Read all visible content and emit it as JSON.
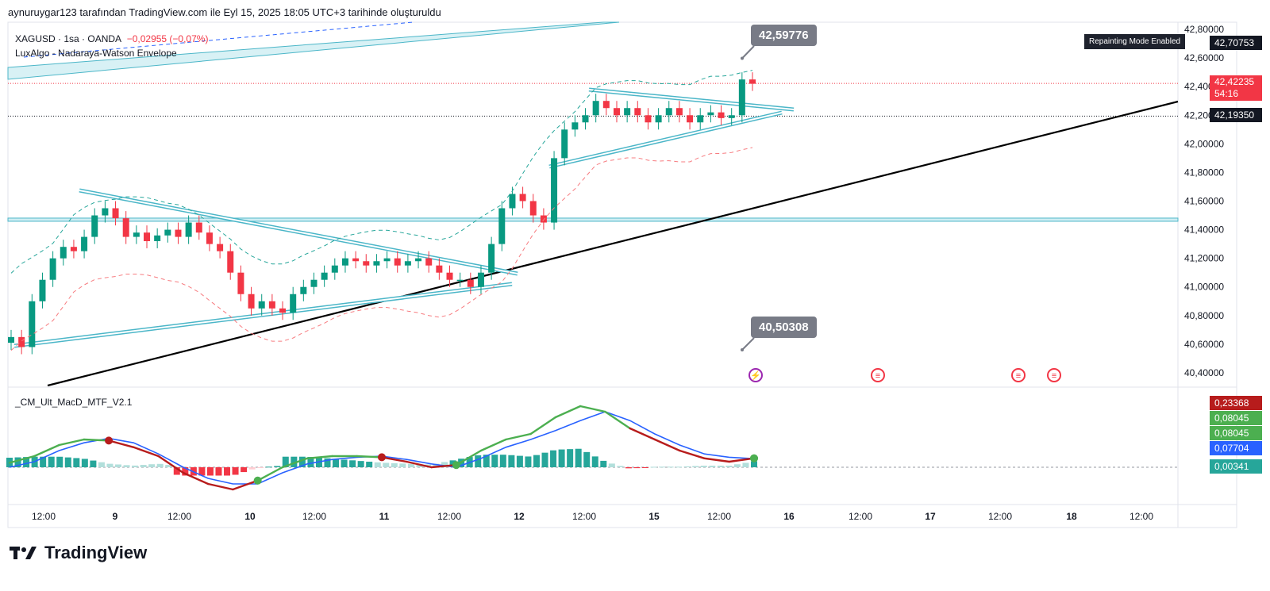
{
  "caption": "aynuruygar123 tarafından TradingView.com ile Eyl 15, 2025 18:05 UTC+3 tarihinde oluşturuldu",
  "legend": {
    "symbol": "XAGUSD · 1sa · OANDA",
    "change": "−0,02955 (−0,07%)",
    "indicator": "LuxAlgo - Nadaraya-Watson Envelope",
    "macd_name": "_CM_Ult_MacD_MTF_V2.1"
  },
  "badge": "Repainting Mode Enabled",
  "callouts": {
    "upper": "42,59776",
    "lower": "40,50308"
  },
  "price_tags": {
    "top": "42,70753",
    "last_price": "42,42235",
    "countdown": "54:16",
    "mid": "42,19350"
  },
  "macd_tags": [
    "0,23368",
    "0,08045",
    "0,08045",
    "0,07704",
    "0,00341"
  ],
  "brand": "TradingView",
  "colors": {
    "up": "#089981",
    "down": "#f23645",
    "macd_green": "#4caf50",
    "macd_blue": "#2962ff",
    "macd_red": "#b71c1c",
    "band_cyan": "#4bb6c8",
    "tag_red": "#f23645",
    "tag_dark": "#131722"
  },
  "chart_data": [
    {
      "type": "candlestick",
      "title": "XAGUSD · 1sa · OANDA",
      "ylim": [
        40.3,
        42.85
      ],
      "y_ticks": [
        "42,80000",
        "42,60000",
        "42,40000",
        "42,20000",
        "42,00000",
        "41,80000",
        "41,60000",
        "41,40000",
        "41,20000",
        "41,00000",
        "40,80000",
        "40,60000",
        "40,40000"
      ],
      "x_ticks": [
        "12:00",
        "9",
        "12:00",
        "10",
        "12:00",
        "11",
        "12:00",
        "12",
        "12:00",
        "15",
        "12:00",
        "16",
        "12:00",
        "17",
        "12:00",
        "18",
        "12:00"
      ],
      "close_path": [
        40.65,
        40.58,
        40.9,
        41.05,
        41.2,
        41.28,
        41.25,
        41.35,
        41.5,
        41.55,
        41.48,
        41.35,
        41.38,
        41.32,
        41.36,
        41.4,
        41.35,
        41.45,
        41.38,
        41.3,
        41.25,
        41.1,
        40.95,
        40.85,
        40.9,
        40.85,
        40.82,
        40.95,
        41.0,
        41.05,
        41.1,
        41.15,
        41.2,
        41.18,
        41.15,
        41.18,
        41.2,
        41.15,
        41.18,
        41.2,
        41.15,
        41.1,
        41.05,
        41.05,
        41.0,
        41.1,
        41.3,
        41.55,
        41.65,
        41.6,
        41.5,
        41.45,
        41.9,
        42.1,
        42.15,
        42.2,
        42.3,
        42.25,
        42.2,
        42.25,
        42.2,
        42.15,
        42.2,
        42.25,
        42.2,
        42.15,
        42.2,
        42.22,
        42.18,
        42.2,
        42.45,
        42.42
      ],
      "envelope_upper_end": 42.59776,
      "envelope_lower_end": 40.50308,
      "last_price": 42.42235,
      "reference_price": 42.1935,
      "horizontal_level": 41.47
    },
    {
      "type": "line",
      "title": "_CM_Ult_MacD_MTF_V2.1",
      "series": [
        {
          "values": [
            0.04,
            0.1,
            0.2,
            0.25,
            0.24,
            0.18,
            0.1,
            -0.05,
            -0.15,
            -0.2,
            -0.12,
            0.0,
            0.08,
            0.1,
            0.1,
            0.09,
            0.05,
            0.0,
            0.02,
            0.15,
            0.25,
            0.3,
            0.45,
            0.55,
            0.5,
            0.35,
            0.25,
            0.15,
            0.08,
            0.05,
            0.0804
          ]
        },
        {
          "values": [
            0.0,
            0.05,
            0.15,
            0.22,
            0.26,
            0.22,
            0.12,
            0.0,
            -0.1,
            -0.15,
            -0.15,
            -0.05,
            0.03,
            0.07,
            0.09,
            0.1,
            0.07,
            0.03,
            0.0,
            0.08,
            0.18,
            0.25,
            0.33,
            0.42,
            0.5,
            0.42,
            0.3,
            0.2,
            0.12,
            0.09,
            0.077
          ]
        }
      ]
    }
  ]
}
